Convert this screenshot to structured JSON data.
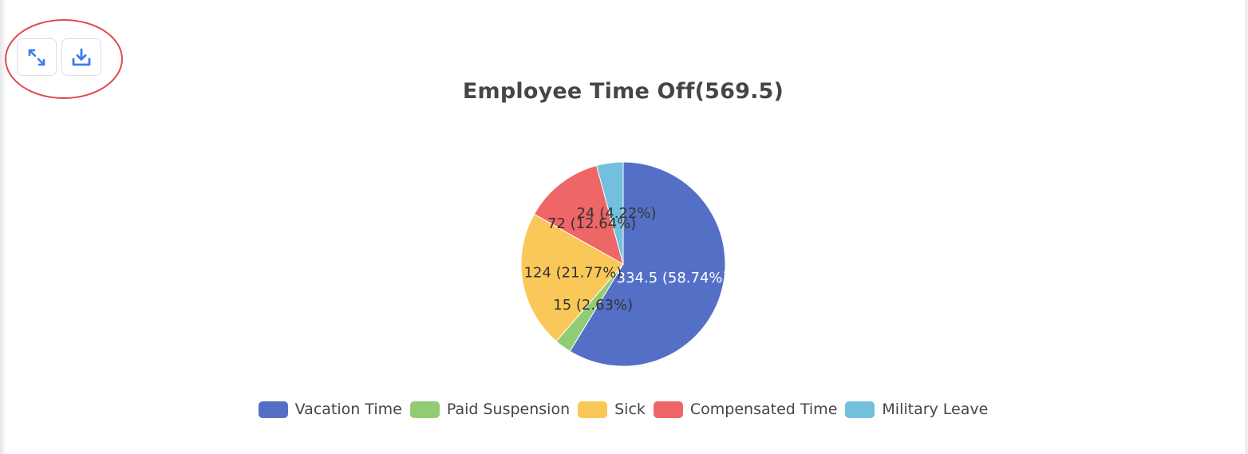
{
  "toolbar": {
    "fullscreen_icon": "expand-arrows-icon",
    "download_icon": "download-icon",
    "icon_color": "#3b7bf0",
    "highlight_color": "#e0474c"
  },
  "chart_data": {
    "type": "pie",
    "title": "Employee Time Off(569.5)",
    "total": 569.5,
    "slices": [
      {
        "name": "Vacation Time",
        "value": 334.5,
        "percent": 58.74,
        "label": "334.5 (58.74%)",
        "color": "#5470c6"
      },
      {
        "name": "Paid Suspension",
        "value": 15,
        "percent": 2.63,
        "label": "15 (2.63%)",
        "color": "#91cc75"
      },
      {
        "name": "Sick",
        "value": 124,
        "percent": 21.77,
        "label": "124 (21.77%)",
        "color": "#fac858"
      },
      {
        "name": "Compensated Time",
        "value": 72,
        "percent": 12.64,
        "label": "72 (12.64%)",
        "color": "#ee6666"
      },
      {
        "name": "Military Leave",
        "value": 24,
        "percent": 4.22,
        "label": "24 (4.22%)",
        "color": "#73c0de"
      }
    ],
    "legend_position": "bottom"
  }
}
